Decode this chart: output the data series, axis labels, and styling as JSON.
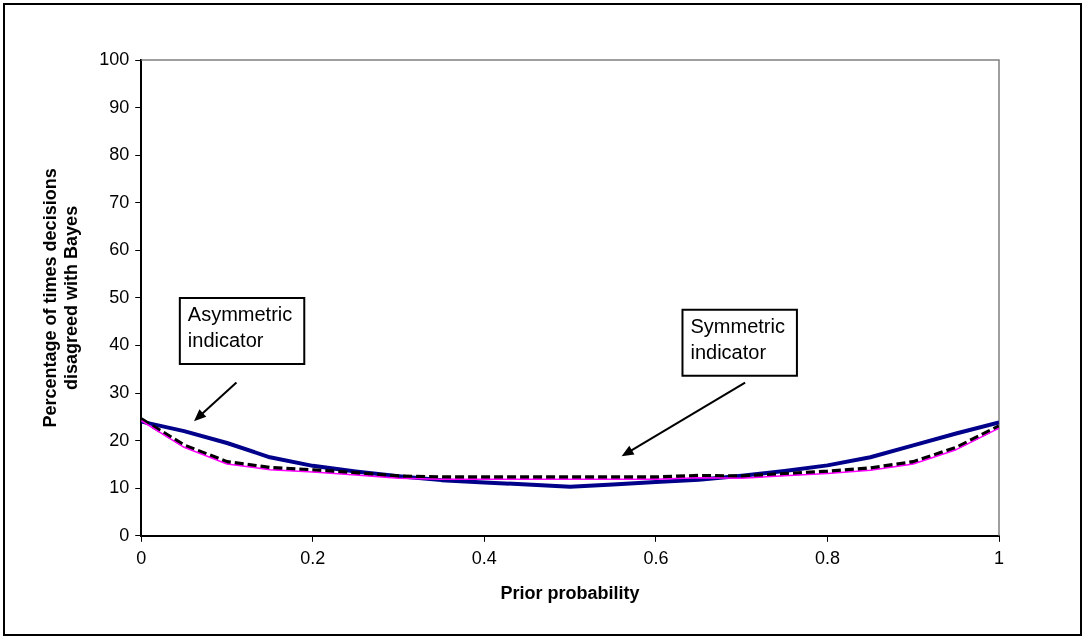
{
  "chart_data": {
    "type": "line",
    "xlabel": "Prior probability",
    "ylabel": "Percentage of times decisions disagreed with Bayes",
    "xlim": [
      0,
      1
    ],
    "xticks": [
      0,
      0.2,
      0.4,
      0.6,
      0.8,
      1
    ],
    "ylim": [
      0,
      100
    ],
    "yticks": [
      0,
      10,
      20,
      30,
      40,
      50,
      60,
      70,
      80,
      90,
      100
    ],
    "x": [
      0,
      0.05,
      0.1,
      0.15,
      0.2,
      0.25,
      0.3,
      0.35,
      0.4,
      0.45,
      0.5,
      0.55,
      0.6,
      0.65,
      0.7,
      0.75,
      0.8,
      0.85,
      0.9,
      0.95,
      1
    ],
    "series": [
      {
        "color": "#ff00ff",
        "line_style": "solid",
        "values": [
          24.2,
          18.6,
          15.1,
          13.9,
          13.4,
          12.8,
          12.1,
          11.9,
          11.9,
          11.9,
          11.9,
          11.9,
          11.9,
          12.2,
          12.1,
          12.6,
          13.1,
          13.8,
          15.1,
          18.1,
          22.6
        ]
      },
      {
        "color": "#000000",
        "line_style": "dashed",
        "values": [
          24.5,
          19,
          15.5,
          14.3,
          13.8,
          13.2,
          12.5,
          12.3,
          12.3,
          12.3,
          12.3,
          12.3,
          12.3,
          12.6,
          12.5,
          13,
          13.5,
          14.2,
          15.5,
          18.5,
          23
        ]
      },
      {
        "color": "#00008b",
        "line_style": "solid",
        "values": [
          24,
          22,
          19.5,
          16.5,
          14.7,
          13.5,
          12.5,
          11.7,
          11.2,
          10.8,
          10.3,
          10.8,
          11.3,
          11.8,
          12.6,
          13.6,
          14.8,
          16.5,
          19,
          21.5,
          23.8
        ]
      }
    ],
    "annotations": [
      "Asymmetric\nindicator",
      "Symmetric\nindicator"
    ],
    "grid": false,
    "legend": false,
    "marker": "none"
  }
}
